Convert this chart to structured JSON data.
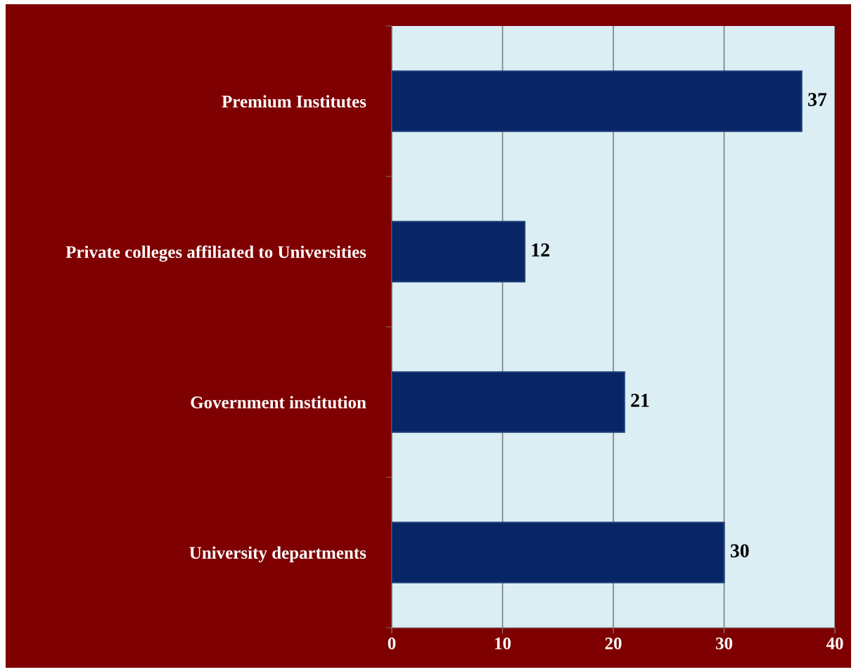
{
  "chart_data": {
    "type": "bar",
    "orientation": "horizontal",
    "categories": [
      "Premium Institutes",
      "Private colleges affiliated to Universities",
      "Government institution",
      "University departments"
    ],
    "values": [
      37,
      12,
      21,
      30
    ],
    "color": "#082566",
    "xlim": [
      0,
      40
    ],
    "xticks": [
      0,
      10,
      20,
      30,
      40
    ],
    "grid": "x",
    "data_labels": true
  }
}
